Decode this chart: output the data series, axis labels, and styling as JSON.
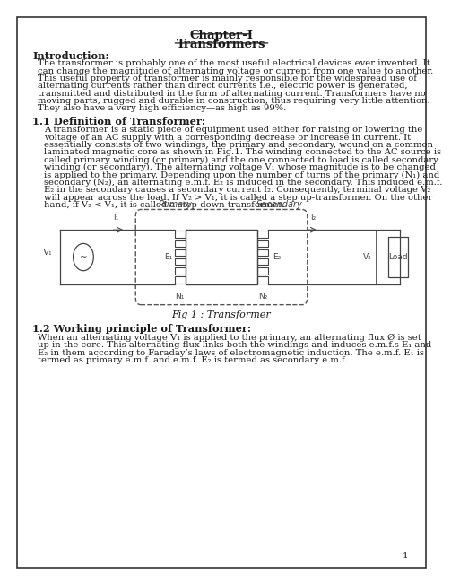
{
  "title": "Chapter-I",
  "subtitle": "Transformers",
  "bg_color": "#ffffff",
  "text_color": "#1a1a1a",
  "border_color": "#333333",
  "intro_heading": "Introduction:",
  "intro_text": "The transformer is probably one of the most useful electrical devices ever invented. It\ncan change the magnitude of alternating voltage or current from one value to another.\nThis useful property of transformer is mainly responsible for the widespread use of\nalternating currents rather than direct currents i.e., electric power is generated,\ntransmitted and distributed in the form of alternating current. Transformers have no\nmoving parts, rugged and durable in construction, thus requiring very little attention.\nThey also have a very high efficiency—as high as 99%.",
  "section1_heading": "1.1 Definition of Transformer:",
  "section1_text": "A transformer is a static piece of equipment used either for raising or lowering the\nvoltage of an AC supply with a corresponding decrease or increase in current. It\nessentially consists of two windings, the primary and secondary, wound on a common\nlaminated magnetic core as shown in Fig.1. The winding connected to the AC source is\ncalled primary winding (or primary) and the one connected to load is called secondary\nwinding (or secondary). The alternating voltage V₁ whose magnitude is to be changed\nis applied to the primary. Depending upon the number of turns of the primary (N₁) and\nsecondary (N₂), an alternating e.m.f. E₂ is induced in the secondary. This induced e.m.f.\nE₂ in the secondary causes a secondary current I₂. Consequently, terminal voltage V₂\nwill appear across the load. If V₂ > V₁, it is called a step up-transformer. On the other\nhand, if V₂ < V₁, it is called a step-down transformer.",
  "fig_caption": "Fig 1 : Transformer",
  "section2_heading": "1.2 Working principle of Transformer:",
  "section2_text": "When an alternating voltage V₁ is applied to the primary, an alternating flux Ø is set\nup in the core. This alternating flux links both the windings and induces e.m.f.s E₁ and\nE₂ in them according to Faraday’s laws of electromagnetic induction. The e.m.f. E₁ is\ntermed as primary e.m.f. and e.m.f. E₂ is termed as secondary e.m.f.",
  "page_number": "1",
  "font_size_body": 7.2,
  "font_size_heading": 8.2,
  "font_size_title": 9.5
}
